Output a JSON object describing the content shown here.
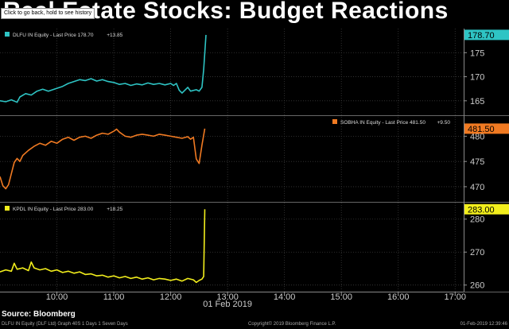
{
  "title": "Real Estate Stocks: Budget Reactions",
  "tooltip": "Click to go back, hold to see history",
  "source": "Source: Bloomberg",
  "footer": {
    "left": "DLFU IN Equity (DLF Ltd) Graph 40S 1 Days 1 Seven Days",
    "middle": "Copyright© 2019 Bloomberg Finance L.P.",
    "right": "01-Feb-2019 12:39:46"
  },
  "chart_data": {
    "type": "line",
    "x_date_label": "01 Feb 2019",
    "x_ticks": [
      "10:00",
      "11:00",
      "12:00",
      "13:00",
      "14:00",
      "15:00",
      "16:00",
      "17:00"
    ],
    "x_hours": [
      10,
      11,
      12,
      13,
      14,
      15,
      16,
      17
    ],
    "xlim_hours": [
      9.0,
      17.15
    ],
    "panels": [
      {
        "legend_label": "DLFU IN Equity - Last Price",
        "last_price": "178.70",
        "change": "+13.85",
        "color": "#2ec4c4",
        "ylim": [
          162,
          180
        ],
        "y_ticks": [
          165,
          170,
          175
        ],
        "x": [
          9.0,
          9.1,
          9.2,
          9.3,
          9.35,
          9.45,
          9.55,
          9.65,
          9.75,
          9.85,
          10.0,
          10.1,
          10.2,
          10.3,
          10.4,
          10.5,
          10.6,
          10.7,
          10.8,
          10.9,
          11.0,
          11.1,
          11.2,
          11.3,
          11.4,
          11.5,
          11.6,
          11.7,
          11.8,
          11.9,
          12.0,
          12.05,
          12.1,
          12.15,
          12.2,
          12.3,
          12.35,
          12.45,
          12.5,
          12.55,
          12.58,
          12.62
        ],
        "y": [
          165.0,
          164.8,
          165.2,
          164.7,
          165.8,
          166.5,
          166.2,
          167.0,
          167.4,
          167.0,
          167.6,
          168.0,
          168.6,
          169.0,
          169.4,
          169.2,
          169.6,
          169.1,
          169.4,
          169.0,
          168.8,
          168.4,
          168.6,
          168.2,
          168.5,
          168.3,
          168.7,
          168.4,
          168.6,
          168.3,
          168.6,
          168.2,
          168.6,
          167.2,
          166.6,
          167.8,
          167.0,
          167.3,
          167.0,
          167.8,
          171.5,
          178.7
        ]
      },
      {
        "legend_label": "SOBHA IN Equity - Last Price",
        "last_price": "481.50",
        "change": "+9.50",
        "color": "#f07a22",
        "ylim": [
          467,
          484
        ],
        "y_ticks": [
          470,
          475,
          480
        ],
        "x": [
          9.0,
          9.05,
          9.1,
          9.15,
          9.2,
          9.25,
          9.3,
          9.35,
          9.4,
          9.5,
          9.6,
          9.7,
          9.8,
          9.9,
          10.0,
          10.1,
          10.2,
          10.3,
          10.4,
          10.5,
          10.6,
          10.7,
          10.8,
          10.9,
          11.0,
          11.05,
          11.1,
          11.2,
          11.3,
          11.4,
          11.5,
          11.6,
          11.7,
          11.8,
          11.9,
          12.0,
          12.1,
          12.2,
          12.3,
          12.35,
          12.4,
          12.45,
          12.5,
          12.55,
          12.6
        ],
        "y": [
          472.0,
          470.2,
          469.6,
          470.4,
          472.6,
          474.8,
          475.6,
          475.0,
          476.2,
          477.2,
          478.0,
          478.6,
          478.2,
          479.0,
          478.6,
          479.4,
          479.8,
          479.2,
          479.8,
          480.0,
          479.6,
          480.2,
          480.6,
          480.4,
          481.0,
          481.4,
          480.8,
          480.0,
          479.8,
          480.2,
          480.4,
          480.2,
          480.0,
          480.4,
          480.2,
          480.0,
          479.8,
          479.6,
          479.9,
          479.4,
          479.8,
          475.5,
          474.6,
          478.2,
          481.5
        ]
      },
      {
        "legend_label": "KPDL IN Equity - Last Price",
        "last_price": "283.00",
        "change": "+18.25",
        "color": "#f2ee1c",
        "ylim": [
          258,
          285
        ],
        "y_ticks": [
          260,
          270,
          280
        ],
        "x": [
          9.0,
          9.1,
          9.2,
          9.25,
          9.3,
          9.4,
          9.5,
          9.55,
          9.6,
          9.7,
          9.8,
          9.9,
          10.0,
          10.1,
          10.2,
          10.3,
          10.4,
          10.5,
          10.6,
          10.7,
          10.8,
          10.9,
          11.0,
          11.1,
          11.2,
          11.3,
          11.4,
          11.5,
          11.6,
          11.7,
          11.8,
          11.9,
          12.0,
          12.1,
          12.2,
          12.3,
          12.4,
          12.45,
          12.5,
          12.55,
          12.58,
          12.6
        ],
        "y": [
          264.0,
          264.6,
          264.2,
          266.6,
          264.8,
          265.2,
          264.4,
          267.0,
          265.2,
          264.6,
          265.0,
          264.2,
          264.6,
          263.8,
          264.2,
          263.6,
          264.0,
          263.2,
          263.4,
          262.8,
          263.0,
          262.4,
          262.8,
          262.2,
          262.6,
          262.0,
          262.4,
          261.8,
          262.2,
          261.6,
          262.0,
          261.8,
          261.4,
          261.8,
          261.2,
          262.0,
          261.6,
          260.8,
          261.4,
          261.8,
          262.6,
          283.0
        ]
      }
    ]
  }
}
